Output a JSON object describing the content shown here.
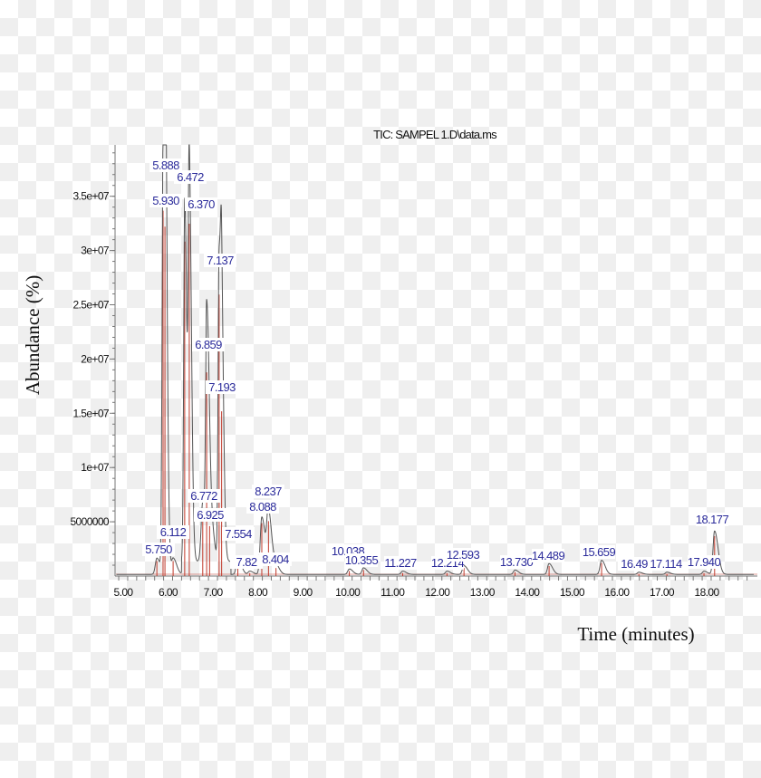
{
  "chart_data": {
    "type": "line",
    "title": "TIC: SAMPEL 1.D\\data.ms",
    "xlabel": "Time (minutes)",
    "ylabel": "Abundance (%)",
    "xlim": [
      4.8,
      19.1
    ],
    "ylim": [
      0,
      39500000.0
    ],
    "x_ticks": [
      "5.00",
      "6.00",
      "7.00",
      "8.00",
      "9.00",
      "10.00",
      "11.00",
      "12.00",
      "13.00",
      "14.00",
      "15.00",
      "16.00",
      "17.00",
      "18.00"
    ],
    "y_ticks": [
      "5000000",
      "1e+07",
      "1.5e+07",
      "2e+07",
      "2.5e+07",
      "3e+07",
      "3.5e+07"
    ],
    "grid": false,
    "colors": {
      "trace": "#555555",
      "integration": "#c0392b",
      "peak_label": "#2a2a9a"
    },
    "peaks": [
      {
        "rt": 5.75,
        "label": "5.750",
        "height": 1500000
      },
      {
        "rt": 5.888,
        "label": "5.888",
        "height": 36600000
      },
      {
        "rt": 5.93,
        "label": "5.930",
        "height": 35000000
      },
      {
        "rt": 6.112,
        "label": "6.112",
        "height": 1500000
      },
      {
        "rt": 6.37,
        "label": "6.370",
        "height": 33500000
      },
      {
        "rt": 6.472,
        "label": "6.472",
        "height": 35300000
      },
      {
        "rt": 6.772,
        "label": "6.772",
        "height": 5500000
      },
      {
        "rt": 6.859,
        "label": "6.859",
        "height": 20400000
      },
      {
        "rt": 6.925,
        "label": "6.925",
        "height": 5000000
      },
      {
        "rt": 7.137,
        "label": "7.137",
        "height": 28200000
      },
      {
        "rt": 7.193,
        "label": "7.193",
        "height": 16500000
      },
      {
        "rt": 7.554,
        "label": "7.554",
        "height": 1500000
      },
      {
        "rt": 7.82,
        "label": "7.82",
        "height": 300000
      },
      {
        "rt": 8.088,
        "label": "8.088",
        "height": 5300000
      },
      {
        "rt": 8.237,
        "label": "8.237",
        "height": 5500000
      },
      {
        "rt": 8.404,
        "label": "8.404",
        "height": 800000
      },
      {
        "rt": 10.038,
        "label": "10.038",
        "height": 500000
      },
      {
        "rt": 10.355,
        "label": "10.355",
        "height": 600000
      },
      {
        "rt": 11.227,
        "label": "11.227",
        "height": 300000
      },
      {
        "rt": 12.214,
        "label": "12.214",
        "height": 300000
      },
      {
        "rt": 12.593,
        "label": "12.593",
        "height": 800000
      },
      {
        "rt": 13.73,
        "label": "13.730",
        "height": 400000
      },
      {
        "rt": 14.489,
        "label": "14.489",
        "height": 1000000
      },
      {
        "rt": 15.659,
        "label": "15.659",
        "height": 1300000
      },
      {
        "rt": 16.49,
        "label": "16.49",
        "height": 200000
      },
      {
        "rt": 17.114,
        "label": "17.114",
        "height": 200000
      },
      {
        "rt": 17.94,
        "label": "17.940",
        "height": 300000
      },
      {
        "rt": 18.177,
        "label": "18.177",
        "height": 4000000
      }
    ]
  }
}
